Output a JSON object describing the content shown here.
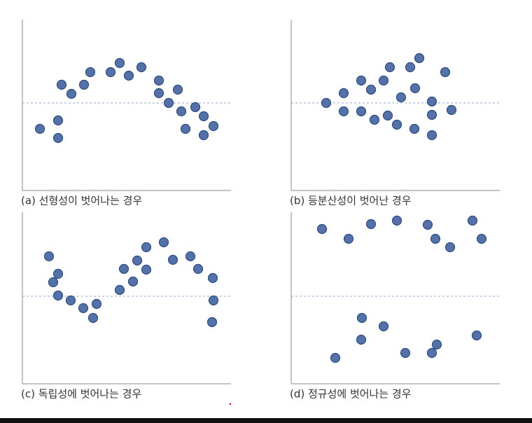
{
  "chart_data": [
    {
      "type": "scatter",
      "title": "(a) 선형성이 벗어나는 경우",
      "xlim": [
        0,
        298
      ],
      "ylim": [
        -125,
        119
      ],
      "hline": 0,
      "x": [
        25,
        51,
        51,
        56,
        70,
        88,
        97,
        126,
        139,
        152,
        170,
        195,
        195,
        209,
        222,
        227,
        233,
        247,
        259,
        259,
        273
      ],
      "values": [
        -37,
        -25,
        -50,
        26,
        13,
        26,
        44,
        44,
        57,
        39,
        51,
        32,
        14,
        0,
        19,
        -12,
        -37,
        -6,
        -19,
        -46,
        -33
      ]
    },
    {
      "type": "scatter",
      "title": "(b) 등분산성이 벗어난 경우",
      "xlim": [
        0,
        298
      ],
      "ylim": [
        -125,
        119
      ],
      "hline": 0,
      "x": [
        50,
        75,
        75,
        100,
        100,
        114,
        119,
        132,
        138,
        141,
        151,
        157,
        170,
        176,
        177,
        183,
        201,
        201,
        201,
        220,
        229
      ],
      "values": [
        0,
        14,
        -12,
        32,
        -12,
        19,
        -24,
        32,
        -18,
        51,
        -31,
        8,
        51,
        -37,
        21,
        64,
        2,
        -17,
        -46,
        44,
        -10
      ]
    },
    {
      "type": "scatter",
      "title": "(c) 독립성에 벗어나는 경우",
      "xlim": [
        0,
        298
      ],
      "ylim": [
        -125,
        120
      ],
      "hline": 0,
      "x": [
        38,
        51,
        44,
        51,
        69,
        87,
        101,
        106,
        139,
        145,
        158,
        164,
        177,
        177,
        202,
        215,
        240,
        251,
        272,
        273,
        271
      ],
      "values": [
        57,
        32,
        20,
        1,
        -6,
        -17,
        -31,
        -11,
        9,
        39,
        21,
        51,
        38,
        70,
        77,
        52,
        57,
        39,
        26,
        -6,
        -37
      ]
    },
    {
      "type": "scatter",
      "title": "(d) 정규성에 벗어나는 경우",
      "xlim": [
        0,
        298
      ],
      "ylim": [
        -125,
        120
      ],
      "hline": 0,
      "x": [
        44,
        82,
        114,
        151,
        195,
        206,
        227,
        259,
        272,
        63,
        100,
        101,
        132,
        163,
        201,
        208,
        265
      ],
      "values": [
        96,
        82,
        103,
        108,
        102,
        82,
        70,
        108,
        82,
        -88,
        -62,
        -31,
        -43,
        -81,
        -81,
        -69,
        -56
      ]
    }
  ]
}
